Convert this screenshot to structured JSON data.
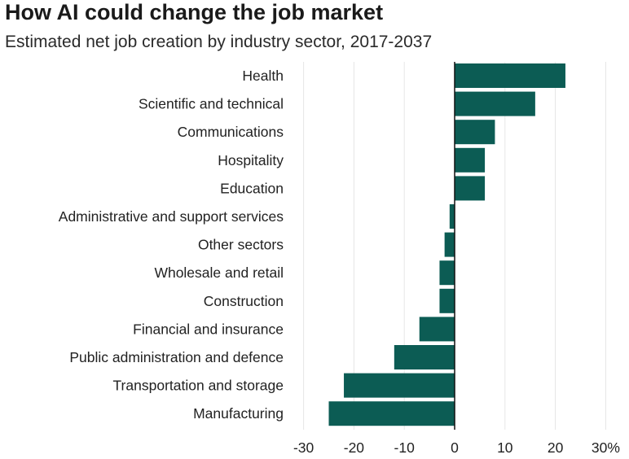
{
  "chart_data": {
    "type": "bar",
    "orientation": "horizontal",
    "title": "How AI could change the job market",
    "subtitle": "Estimated net job creation by industry sector, 2017-2037",
    "categories": [
      "Health",
      "Scientific and technical",
      "Communications",
      "Hospitality",
      "Education",
      "Administrative and support services",
      "Other sectors",
      "Wholesale and retail",
      "Construction",
      "Financial and insurance",
      "Public administration and defence",
      "Transportation and storage",
      "Manufacturing"
    ],
    "values": [
      22,
      16,
      8,
      6,
      6,
      -1,
      -2,
      -3,
      -3,
      -7,
      -12,
      -22,
      -25
    ],
    "xlim": [
      -30,
      30
    ],
    "xticks": [
      -30,
      -20,
      -10,
      0,
      10,
      20,
      30
    ],
    "xtick_labels": [
      "-30",
      "-20",
      "-10",
      "0",
      "10",
      "20",
      "30%"
    ],
    "grid": "vertical",
    "xlabel": "",
    "ylabel": ""
  },
  "colors": {
    "bar": "#0c5c54",
    "grid": "#e6e6e6",
    "zero_line": "#111111",
    "text": "#222222"
  }
}
